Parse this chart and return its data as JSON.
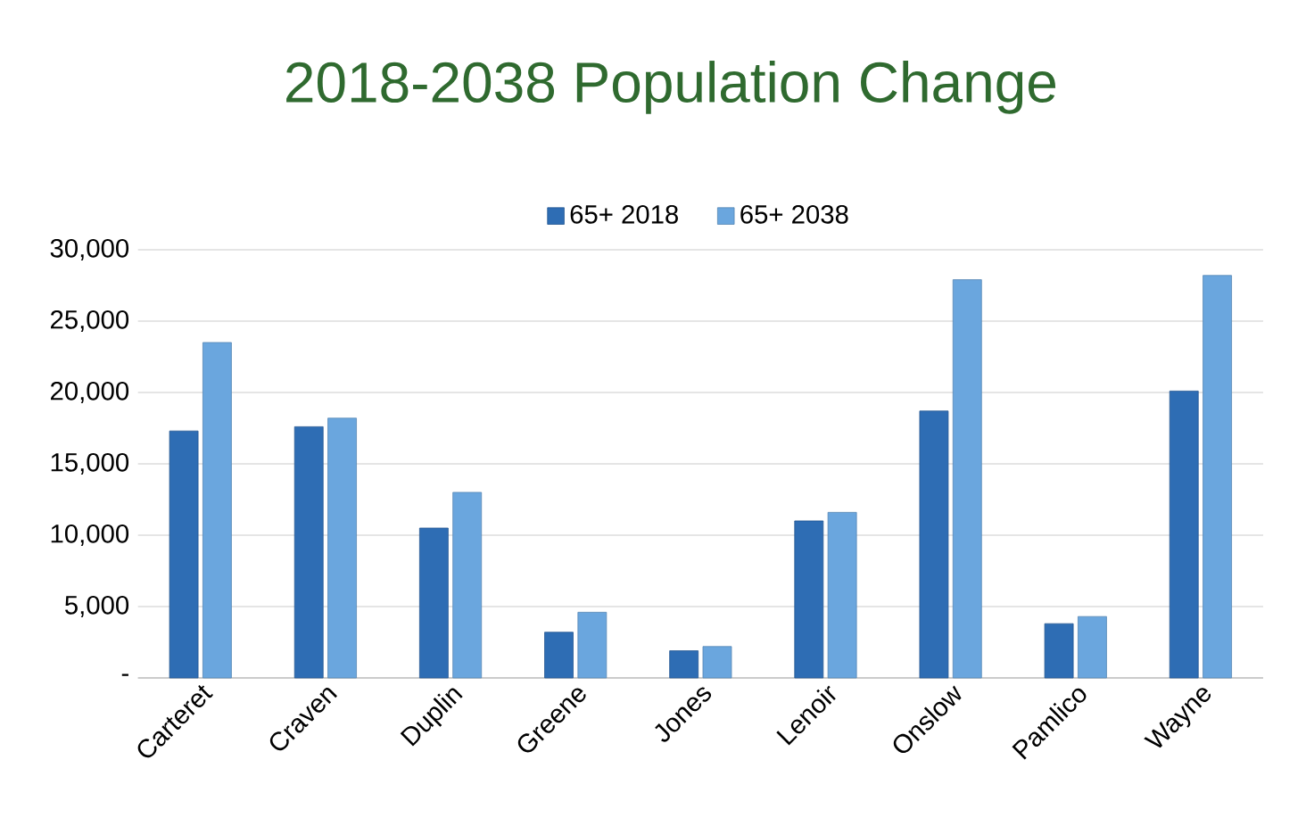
{
  "chart_data": {
    "type": "bar",
    "title": "2018-2038 Population Change",
    "categories": [
      "Carteret",
      "Craven",
      "Duplin",
      "Greene",
      "Jones",
      "Lenoir",
      "Onslow",
      "Pamlico",
      "Wayne"
    ],
    "series": [
      {
        "name": "65+ 2018",
        "color": "#2e6db4",
        "values": [
          17300,
          17600,
          10500,
          3200,
          1900,
          11000,
          18700,
          3800,
          20100
        ]
      },
      {
        "name": "65+ 2038",
        "color": "#6aa6de",
        "values": [
          23500,
          18200,
          13000,
          4600,
          2200,
          11600,
          27900,
          4300,
          28200
        ]
      }
    ],
    "ylim": [
      0,
      30000
    ],
    "yticks": [
      {
        "value": 0,
        "label": "-"
      },
      {
        "value": 5000,
        "label": "5,000"
      },
      {
        "value": 10000,
        "label": "10,000"
      },
      {
        "value": 15000,
        "label": "15,000"
      },
      {
        "value": 20000,
        "label": "20,000"
      },
      {
        "value": 25000,
        "label": "25,000"
      },
      {
        "value": 30000,
        "label": "30,000"
      }
    ],
    "grid": "y",
    "legend": "top"
  }
}
